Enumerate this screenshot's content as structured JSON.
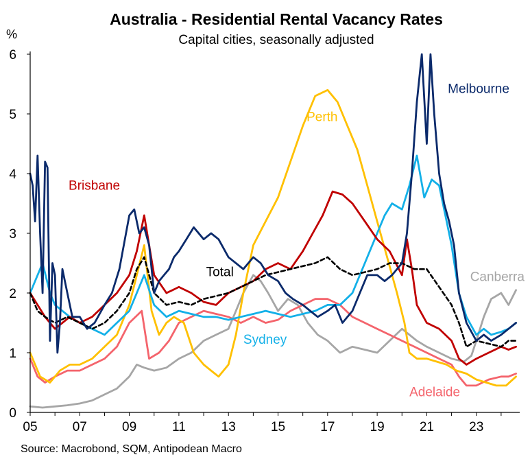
{
  "chart_data": {
    "type": "line",
    "title": "Australia - Residential Rental Vacancy Rates",
    "subtitle": "Capital cities, seasonally adjusted",
    "y_unit": "%",
    "xlabel": "",
    "ylabel": "",
    "ylim": [
      0,
      6
    ],
    "xlim": [
      2005,
      2024.75
    ],
    "y_ticks": [
      "0",
      "1",
      "2",
      "3",
      "4",
      "5",
      "6"
    ],
    "x_ticks": [
      "05",
      "07",
      "09",
      "11",
      "13",
      "15",
      "17",
      "19",
      "21",
      "23"
    ],
    "grid": false,
    "legend": "direct labels on lines",
    "source": "Source: Macrobond, SQM, Antipodean Macro",
    "series": [
      {
        "name": "Canberra",
        "color": "#a6a6a6",
        "dash": false,
        "x": [
          2005.0,
          2005.5,
          2006.0,
          2006.5,
          2007.0,
          2007.5,
          2008.0,
          2008.5,
          2009.0,
          2009.3,
          2009.6,
          2010.0,
          2010.5,
          2011.0,
          2011.5,
          2012.0,
          2012.5,
          2013.0,
          2013.3,
          2013.6,
          2014.0,
          2014.3,
          2014.6,
          2015.0,
          2015.4,
          2015.8,
          2016.2,
          2016.6,
          2017.0,
          2017.5,
          2018.0,
          2018.5,
          2019.0,
          2019.5,
          2020.0,
          2020.3,
          2020.6,
          2021.0,
          2021.5,
          2022.0,
          2022.5,
          2022.8,
          2023.0,
          2023.3,
          2023.6,
          2024.0,
          2024.3,
          2024.6
        ],
        "values": [
          0.1,
          0.08,
          0.1,
          0.12,
          0.15,
          0.2,
          0.3,
          0.4,
          0.6,
          0.8,
          0.75,
          0.7,
          0.75,
          0.9,
          1.0,
          1.2,
          1.3,
          1.4,
          1.7,
          2.0,
          2.3,
          2.2,
          2.0,
          1.7,
          1.9,
          1.8,
          1.5,
          1.3,
          1.2,
          1.0,
          1.1,
          1.05,
          1.0,
          1.2,
          1.4,
          1.3,
          1.2,
          1.1,
          1.0,
          0.9,
          0.85,
          0.95,
          1.2,
          1.6,
          1.9,
          2.0,
          1.8,
          2.05
        ]
      },
      {
        "name": "Adelaide",
        "color": "#f4646c",
        "dash": false,
        "x": [
          2005.0,
          2005.3,
          2005.6,
          2006.0,
          2006.5,
          2007.0,
          2007.5,
          2008.0,
          2008.5,
          2009.0,
          2009.5,
          2009.8,
          2010.2,
          2010.6,
          2011.0,
          2011.5,
          2012.0,
          2012.5,
          2013.0,
          2013.5,
          2014.0,
          2014.5,
          2015.0,
          2015.5,
          2016.0,
          2016.5,
          2017.0,
          2017.5,
          2018.0,
          2018.5,
          2019.0,
          2019.5,
          2020.0,
          2020.5,
          2021.0,
          2021.5,
          2022.0,
          2022.3,
          2022.6,
          2023.0,
          2023.5,
          2024.0,
          2024.3,
          2024.6
        ],
        "values": [
          0.9,
          0.6,
          0.5,
          0.6,
          0.7,
          0.7,
          0.8,
          0.9,
          1.1,
          1.5,
          1.7,
          0.9,
          1.0,
          1.2,
          1.5,
          1.6,
          1.7,
          1.65,
          1.6,
          1.5,
          1.6,
          1.5,
          1.55,
          1.7,
          1.8,
          1.9,
          1.9,
          1.8,
          1.6,
          1.5,
          1.4,
          1.3,
          1.2,
          1.1,
          1.0,
          0.9,
          0.8,
          0.6,
          0.45,
          0.45,
          0.55,
          0.6,
          0.6,
          0.65
        ]
      },
      {
        "name": "Perth",
        "color": "#ffc000",
        "dash": false,
        "x": [
          2005.0,
          2005.4,
          2005.8,
          2006.2,
          2006.6,
          2007.0,
          2007.5,
          2008.0,
          2008.5,
          2009.0,
          2009.3,
          2009.6,
          2009.9,
          2010.2,
          2010.5,
          2010.8,
          2011.2,
          2011.6,
          2012.0,
          2012.3,
          2012.6,
          2013.0,
          2013.3,
          2013.6,
          2014.0,
          2014.5,
          2015.0,
          2015.5,
          2016.0,
          2016.5,
          2017.0,
          2017.4,
          2017.8,
          2018.2,
          2018.6,
          2019.0,
          2019.4,
          2019.8,
          2020.1,
          2020.3,
          2020.6,
          2021.0,
          2021.4,
          2021.8,
          2022.2,
          2022.6,
          2023.0,
          2023.4,
          2023.8,
          2024.2,
          2024.6
        ],
        "values": [
          1.0,
          0.6,
          0.5,
          0.7,
          0.8,
          0.8,
          0.9,
          1.1,
          1.3,
          1.8,
          2.3,
          2.8,
          1.7,
          1.3,
          1.5,
          1.6,
          1.5,
          1.0,
          0.8,
          0.7,
          0.6,
          0.8,
          1.3,
          2.0,
          2.8,
          3.2,
          3.6,
          4.2,
          4.8,
          5.3,
          5.4,
          5.2,
          4.8,
          4.4,
          3.8,
          3.2,
          2.6,
          2.0,
          1.5,
          1.0,
          0.9,
          0.9,
          0.85,
          0.8,
          0.7,
          0.65,
          0.55,
          0.5,
          0.45,
          0.45,
          0.6
        ]
      },
      {
        "name": "Sydney",
        "color": "#13b0e8",
        "dash": false,
        "x": [
          2005.0,
          2005.2,
          2005.5,
          2005.8,
          2006.0,
          2006.3,
          2006.6,
          2007.0,
          2007.5,
          2008.0,
          2008.5,
          2009.0,
          2009.3,
          2009.6,
          2010.0,
          2010.5,
          2011.0,
          2011.5,
          2012.0,
          2012.5,
          2013.0,
          2013.5,
          2014.0,
          2014.5,
          2015.0,
          2015.5,
          2016.0,
          2016.5,
          2017.0,
          2017.5,
          2018.0,
          2018.5,
          2019.0,
          2019.3,
          2019.6,
          2020.0,
          2020.3,
          2020.6,
          2020.9,
          2021.2,
          2021.5,
          2021.8,
          2022.0,
          2022.3,
          2022.6,
          2023.0,
          2023.3,
          2023.6,
          2024.0,
          2024.3,
          2024.6
        ],
        "values": [
          2.0,
          2.2,
          2.5,
          2.0,
          1.8,
          1.7,
          1.6,
          1.5,
          1.4,
          1.3,
          1.5,
          1.7,
          2.0,
          2.3,
          1.8,
          1.6,
          1.7,
          1.65,
          1.6,
          1.6,
          1.55,
          1.6,
          1.65,
          1.7,
          1.65,
          1.6,
          1.65,
          1.7,
          1.8,
          1.8,
          2.0,
          2.5,
          3.0,
          3.3,
          3.5,
          3.4,
          3.8,
          4.3,
          3.6,
          3.9,
          3.8,
          3.2,
          2.8,
          2.0,
          1.6,
          1.3,
          1.4,
          1.3,
          1.35,
          1.4,
          1.5
        ]
      },
      {
        "name": "Brisbane",
        "color": "#c00000",
        "dash": false,
        "x": [
          2005.0,
          2005.3,
          2005.6,
          2006.0,
          2006.3,
          2006.6,
          2007.0,
          2007.5,
          2008.0,
          2008.5,
          2009.0,
          2009.3,
          2009.6,
          2010.0,
          2010.5,
          2011.0,
          2011.5,
          2012.0,
          2012.5,
          2013.0,
          2013.5,
          2014.0,
          2014.5,
          2015.0,
          2015.5,
          2016.0,
          2016.4,
          2016.8,
          2017.2,
          2017.6,
          2018.0,
          2018.5,
          2019.0,
          2019.5,
          2020.0,
          2020.2,
          2020.4,
          2020.6,
          2021.0,
          2021.5,
          2022.0,
          2022.3,
          2022.6,
          2023.0,
          2023.5,
          2024.0,
          2024.3,
          2024.6
        ],
        "values": [
          2.0,
          1.8,
          1.6,
          1.4,
          1.5,
          1.6,
          1.5,
          1.6,
          1.8,
          2.0,
          2.3,
          2.7,
          3.3,
          2.3,
          2.0,
          2.1,
          2.0,
          1.85,
          1.8,
          2.0,
          2.1,
          2.2,
          2.4,
          2.5,
          2.4,
          2.7,
          3.0,
          3.3,
          3.7,
          3.65,
          3.5,
          3.2,
          2.9,
          2.7,
          2.3,
          2.9,
          2.4,
          1.8,
          1.5,
          1.4,
          1.2,
          0.9,
          0.8,
          0.9,
          1.0,
          1.1,
          1.05,
          1.1
        ]
      },
      {
        "name": "Total",
        "color": "#000000",
        "dash": true,
        "x": [
          2005.0,
          2005.3,
          2005.6,
          2006.0,
          2006.5,
          2007.0,
          2007.5,
          2008.0,
          2008.5,
          2009.0,
          2009.3,
          2009.6,
          2010.0,
          2010.5,
          2011.0,
          2011.5,
          2012.0,
          2012.5,
          2013.0,
          2013.5,
          2014.0,
          2014.5,
          2015.0,
          2015.5,
          2016.0,
          2016.5,
          2017.0,
          2017.5,
          2018.0,
          2018.5,
          2019.0,
          2019.5,
          2020.0,
          2020.5,
          2021.0,
          2021.5,
          2022.0,
          2022.3,
          2022.6,
          2023.0,
          2023.5,
          2024.0,
          2024.3,
          2024.6
        ],
        "values": [
          2.0,
          1.7,
          1.6,
          1.5,
          1.6,
          1.5,
          1.4,
          1.5,
          1.7,
          2.0,
          2.4,
          2.6,
          2.0,
          1.8,
          1.85,
          1.8,
          1.9,
          1.95,
          2.0,
          2.1,
          2.2,
          2.3,
          2.35,
          2.4,
          2.45,
          2.5,
          2.6,
          2.4,
          2.3,
          2.35,
          2.4,
          2.5,
          2.5,
          2.4,
          2.4,
          2.1,
          1.8,
          1.5,
          1.1,
          1.2,
          1.15,
          1.1,
          1.2,
          1.2
        ]
      },
      {
        "name": "Melbourne",
        "color": "#0b2a6b",
        "dash": false,
        "x": [
          2005.0,
          2005.1,
          2005.2,
          2005.3,
          2005.4,
          2005.5,
          2005.6,
          2005.7,
          2005.8,
          2005.9,
          2006.0,
          2006.1,
          2006.2,
          2006.3,
          2006.5,
          2006.7,
          2007.0,
          2007.3,
          2007.6,
          2008.0,
          2008.3,
          2008.6,
          2009.0,
          2009.2,
          2009.4,
          2009.6,
          2009.8,
          2010.0,
          2010.2,
          2010.4,
          2010.6,
          2010.8,
          2011.0,
          2011.3,
          2011.6,
          2012.0,
          2012.3,
          2012.6,
          2013.0,
          2013.3,
          2013.6,
          2014.0,
          2014.3,
          2014.6,
          2015.0,
          2015.3,
          2015.6,
          2016.0,
          2016.3,
          2016.6,
          2017.0,
          2017.3,
          2017.6,
          2018.0,
          2018.3,
          2018.6,
          2019.0,
          2019.3,
          2019.6,
          2020.0,
          2020.2,
          2020.4,
          2020.6,
          2020.8,
          2021.0,
          2021.15,
          2021.3,
          2021.5,
          2021.7,
          2021.9,
          2022.1,
          2022.3,
          2022.6,
          2023.0,
          2023.3,
          2023.6,
          2024.0,
          2024.3,
          2024.6
        ],
        "values": [
          4.0,
          3.8,
          3.2,
          4.3,
          3.0,
          2.0,
          4.2,
          4.1,
          1.2,
          2.5,
          2.3,
          1.0,
          1.5,
          2.4,
          2.0,
          1.6,
          1.6,
          1.4,
          1.5,
          1.8,
          2.0,
          2.4,
          3.3,
          3.4,
          3.0,
          3.1,
          2.8,
          2.0,
          2.2,
          2.3,
          2.4,
          2.6,
          2.7,
          2.9,
          3.1,
          2.9,
          3.0,
          2.9,
          2.6,
          2.5,
          2.4,
          2.6,
          2.5,
          2.3,
          2.2,
          2.0,
          1.9,
          1.8,
          1.7,
          1.6,
          1.7,
          1.8,
          1.5,
          1.7,
          2.0,
          2.3,
          2.3,
          2.2,
          2.3,
          2.5,
          3.0,
          4.0,
          5.2,
          6.0,
          4.5,
          6.0,
          5.0,
          4.0,
          3.5,
          3.2,
          2.8,
          2.0,
          1.5,
          1.2,
          1.3,
          1.2,
          1.3,
          1.4,
          1.5
        ]
      }
    ],
    "labels": [
      {
        "text": "Melbourne",
        "series": "Melbourne",
        "x": 2021.85,
        "y": 5.35
      },
      {
        "text": "Perth",
        "series": "Perth",
        "x": 2016.15,
        "y": 4.88
      },
      {
        "text": "Brisbane",
        "series": "Brisbane",
        "x": 2006.55,
        "y": 3.73
      },
      {
        "text": "Total",
        "series": "Total",
        "x": 2012.1,
        "y": 2.28
      },
      {
        "text": "Canberra",
        "series": "Canberra",
        "x": 2022.75,
        "y": 2.2
      },
      {
        "text": "Sydney",
        "series": "Sydney",
        "x": 2013.6,
        "y": 1.15
      },
      {
        "text": "Adelaide",
        "series": "Adelaide",
        "x": 2020.3,
        "y": 0.27
      }
    ]
  }
}
